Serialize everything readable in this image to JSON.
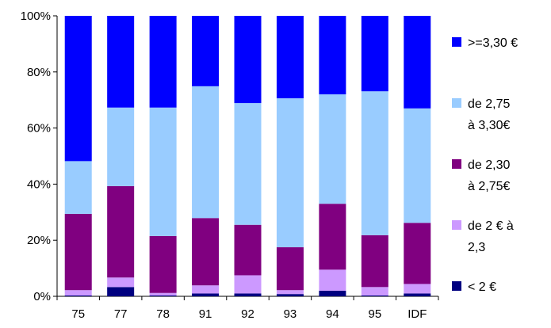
{
  "chart_data": {
    "type": "bar",
    "stacked": true,
    "percent": true,
    "categories": [
      "75",
      "77",
      "78",
      "91",
      "92",
      "93",
      "94",
      "95",
      "IDF"
    ],
    "y_ticks": [
      "0%",
      "20%",
      "40%",
      "60%",
      "80%",
      "100%"
    ],
    "ylim": [
      0,
      100
    ],
    "grid": false,
    "legend_position": "right",
    "series": [
      {
        "name": "< 2 €",
        "legend_lines": [
          "< 2 €"
        ],
        "color": "#000080",
        "values": [
          0.3,
          3.3,
          0.3,
          1.0,
          1.0,
          0.8,
          2.0,
          0.3,
          1.0
        ]
      },
      {
        "name": "de 2 € à 2,3",
        "legend_lines": [
          "de 2 € à",
          "2,3"
        ],
        "color": "#CC99FF",
        "values": [
          1.9,
          3.4,
          0.9,
          2.9,
          6.5,
          1.4,
          7.5,
          3.0,
          3.4
        ]
      },
      {
        "name": "de 2,30 à 2,75€",
        "legend_lines": [
          "de 2,30",
          "à 2,75€"
        ],
        "color": "#800080",
        "values": [
          27.2,
          32.6,
          20.3,
          24.0,
          18.0,
          15.3,
          23.5,
          18.5,
          21.8
        ]
      },
      {
        "name": "de 2,75 à 3,30€",
        "legend_lines": [
          "de 2,75",
          "à 3,30€"
        ],
        "color": "#99CCFF",
        "values": [
          18.8,
          28.0,
          45.8,
          47.0,
          43.4,
          53.1,
          39.0,
          51.3,
          40.8
        ]
      },
      {
        "name": ">=3,30 €",
        "legend_lines": [
          ">=3,30 €"
        ],
        "color": "#0000FF",
        "values": [
          51.8,
          32.7,
          32.7,
          25.1,
          31.1,
          29.4,
          28.0,
          26.9,
          33.0
        ]
      }
    ]
  }
}
